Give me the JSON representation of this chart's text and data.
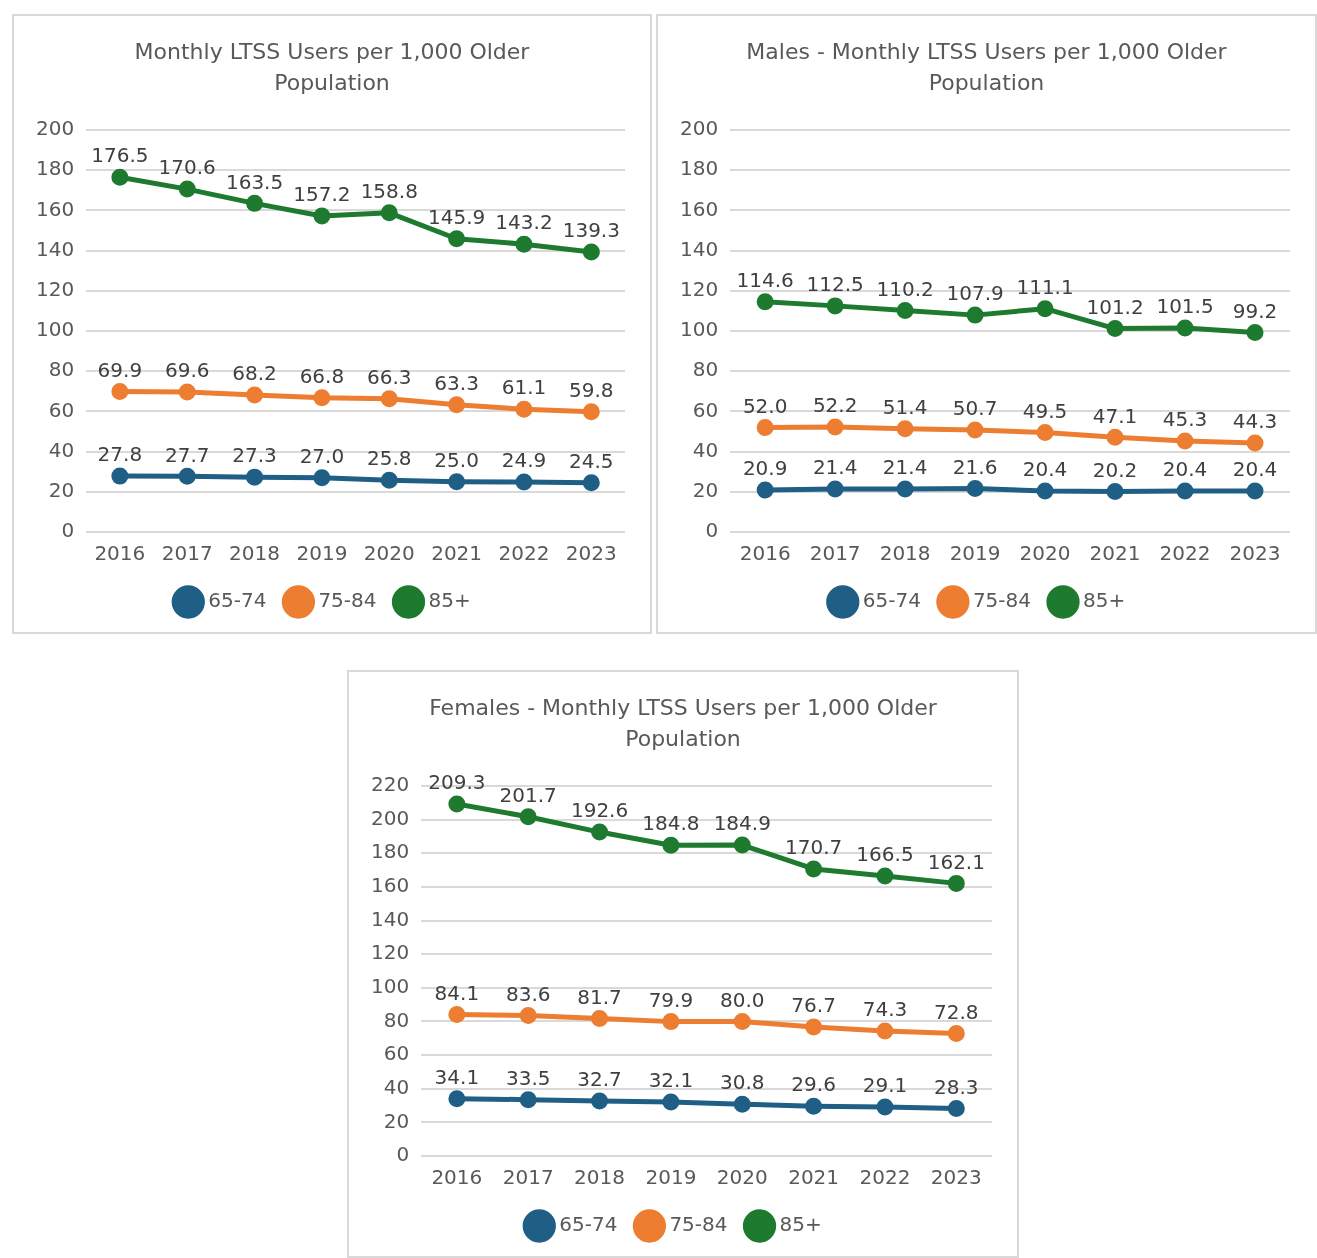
{
  "chart_data": [
    {
      "type": "line",
      "title": "Monthly LTSS Users per 1,000 Older Population",
      "categories": [
        "2016",
        "2017",
        "2018",
        "2019",
        "2020",
        "2021",
        "2022",
        "2023"
      ],
      "ylim": [
        0,
        200
      ],
      "yticks": [
        0,
        20,
        40,
        60,
        80,
        100,
        120,
        140,
        160,
        180,
        200
      ],
      "grid": "y",
      "legend": "bottom",
      "marker": "circle",
      "series": [
        {
          "name": "65-74",
          "color": "#1f5f86",
          "values": [
            27.8,
            27.7,
            27.3,
            27.0,
            25.8,
            25.0,
            24.9,
            24.5
          ],
          "value_labels": [
            "27.8",
            "27.7",
            "27.3",
            "27.0",
            "25.8",
            "25.0",
            "24.9",
            "24.5"
          ]
        },
        {
          "name": "75-84",
          "color": "#ed7d31",
          "values": [
            69.9,
            69.6,
            68.2,
            66.8,
            66.3,
            63.3,
            61.1,
            59.8
          ],
          "value_labels": [
            "69.9",
            "69.6",
            "68.2",
            "66.8",
            "66.3",
            "63.3",
            "61.1",
            "59.8"
          ]
        },
        {
          "name": "85+",
          "color": "#1e7a2e",
          "values": [
            176.5,
            170.6,
            163.5,
            157.2,
            158.8,
            145.9,
            143.2,
            139.3
          ],
          "value_labels": [
            "176.5",
            "170.6",
            "163.5",
            "157.2",
            "158.8",
            "145.9",
            "143.2",
            "139.3"
          ]
        }
      ]
    },
    {
      "type": "line",
      "title": "Males - Monthly LTSS Users per 1,000 Older Population",
      "categories": [
        "2016",
        "2017",
        "2018",
        "2019",
        "2020",
        "2021",
        "2022",
        "2023"
      ],
      "ylim": [
        0,
        200
      ],
      "yticks": [
        0,
        20,
        40,
        60,
        80,
        100,
        120,
        140,
        160,
        180,
        200
      ],
      "grid": "y",
      "legend": "bottom",
      "marker": "circle",
      "series": [
        {
          "name": "65-74",
          "color": "#1f5f86",
          "values": [
            20.9,
            21.4,
            21.4,
            21.6,
            20.4,
            20.2,
            20.4,
            20.4
          ],
          "value_labels": [
            "20.9",
            "21.4",
            "21.4",
            "21.6",
            "20.4",
            "20.2",
            "20.4",
            "20.4"
          ]
        },
        {
          "name": "75-84",
          "color": "#ed7d31",
          "values": [
            52.0,
            52.2,
            51.4,
            50.7,
            49.5,
            47.1,
            45.3,
            44.3
          ],
          "value_labels": [
            "52.0",
            "52.2",
            "51.4",
            "50.7",
            "49.5",
            "47.1",
            "45.3",
            "44.3"
          ]
        },
        {
          "name": "85+",
          "color": "#1e7a2e",
          "values": [
            114.6,
            112.5,
            110.2,
            107.9,
            111.1,
            101.2,
            101.5,
            99.2
          ],
          "value_labels": [
            "114.6",
            "112.5",
            "110.2",
            "107.9",
            "111.1",
            "101.2",
            "101.5",
            "99.2"
          ]
        }
      ]
    },
    {
      "type": "line",
      "title": "Females - Monthly LTSS Users per 1,000 Older Population",
      "categories": [
        "2016",
        "2017",
        "2018",
        "2019",
        "2020",
        "2021",
        "2022",
        "2023"
      ],
      "ylim": [
        0,
        220
      ],
      "yticks": [
        0,
        20,
        40,
        60,
        80,
        100,
        120,
        140,
        160,
        180,
        200,
        220
      ],
      "grid": "y",
      "legend": "bottom",
      "marker": "circle",
      "series": [
        {
          "name": "65-74",
          "color": "#1f5f86",
          "values": [
            34.1,
            33.5,
            32.7,
            32.1,
            30.8,
            29.6,
            29.1,
            28.3
          ],
          "value_labels": [
            "34.1",
            "33.5",
            "32.7",
            "32.1",
            "30.8",
            "29.6",
            "29.1",
            "28.3"
          ]
        },
        {
          "name": "75-84",
          "color": "#ed7d31",
          "values": [
            84.1,
            83.6,
            81.7,
            79.9,
            80.0,
            76.7,
            74.3,
            72.8
          ],
          "value_labels": [
            "84.1",
            "83.6",
            "81.7",
            "79.9",
            "80.0",
            "76.7",
            "74.3",
            "72.8"
          ]
        },
        {
          "name": "85+",
          "color": "#1e7a2e",
          "values": [
            209.3,
            201.7,
            192.6,
            184.8,
            184.9,
            170.7,
            166.5,
            162.1
          ],
          "value_labels": [
            "209.3",
            "201.7",
            "192.6",
            "184.8",
            "184.9",
            "170.7",
            "166.5",
            "162.1"
          ]
        }
      ]
    }
  ]
}
